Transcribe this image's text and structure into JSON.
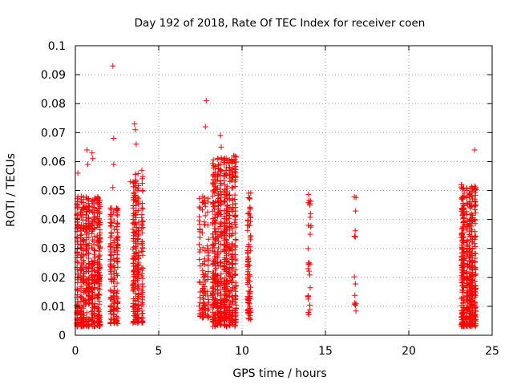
{
  "chart_data": {
    "type": "scatter",
    "title": "Day 192 of 2018, Rate Of TEC Index for receiver coen",
    "xlabel": "GPS time / hours",
    "ylabel": "ROTI / TECUs",
    "xlim": [
      0,
      25
    ],
    "ylim": [
      0,
      0.1
    ],
    "xticks": [
      "0",
      "5",
      "10",
      "15",
      "20",
      "25"
    ],
    "yticks": [
      "0",
      "0.01",
      "0.02",
      "0.03",
      "0.04",
      "0.05",
      "0.06",
      "0.07",
      "0.08",
      "0.09",
      "0.1"
    ],
    "grid": true,
    "marker": "+",
    "marker_color": "#ff0000",
    "clusters": [
      {
        "x_range": [
          0.1,
          1.6
        ],
        "y_range": [
          0.003,
          0.048
        ],
        "n": 600
      },
      {
        "x_range": [
          2.1,
          2.6
        ],
        "y_range": [
          0.004,
          0.044
        ],
        "n": 160
      },
      {
        "x_range": [
          3.4,
          4.1
        ],
        "y_range": [
          0.004,
          0.057
        ],
        "n": 260
      },
      {
        "x_range": [
          7.4,
          8.1
        ],
        "y_range": [
          0.006,
          0.048
        ],
        "n": 120
      },
      {
        "x_range": [
          8.2,
          9.7
        ],
        "y_range": [
          0.003,
          0.062
        ],
        "n": 700
      },
      {
        "x_range": [
          10.3,
          10.6
        ],
        "y_range": [
          0.005,
          0.05
        ],
        "n": 90
      },
      {
        "x_range": [
          13.9,
          14.2
        ],
        "y_range": [
          0.007,
          0.05
        ],
        "n": 30
      },
      {
        "x_range": [
          16.7,
          16.9
        ],
        "y_range": [
          0.007,
          0.049
        ],
        "n": 14
      },
      {
        "x_range": [
          23.1,
          24.1
        ],
        "y_range": [
          0.003,
          0.052
        ],
        "n": 520
      }
    ],
    "points": [
      {
        "x": 2.25,
        "y": 0.093
      },
      {
        "x": 7.85,
        "y": 0.081
      },
      {
        "x": 7.8,
        "y": 0.072
      },
      {
        "x": 3.55,
        "y": 0.073
      },
      {
        "x": 3.6,
        "y": 0.071
      },
      {
        "x": 8.7,
        "y": 0.069
      },
      {
        "x": 8.75,
        "y": 0.065
      },
      {
        "x": 2.3,
        "y": 0.068
      },
      {
        "x": 0.7,
        "y": 0.064
      },
      {
        "x": 1.0,
        "y": 0.063
      },
      {
        "x": 1.05,
        "y": 0.061
      },
      {
        "x": 0.75,
        "y": 0.059
      },
      {
        "x": 3.65,
        "y": 0.066
      },
      {
        "x": 9.5,
        "y": 0.062
      },
      {
        "x": 9.45,
        "y": 0.06
      },
      {
        "x": 23.95,
        "y": 0.064
      },
      {
        "x": 0.15,
        "y": 0.056
      },
      {
        "x": 2.3,
        "y": 0.059
      },
      {
        "x": 2.25,
        "y": 0.051
      },
      {
        "x": 8.95,
        "y": 0.061
      },
      {
        "x": 3.3,
        "y": 0.053
      }
    ]
  }
}
